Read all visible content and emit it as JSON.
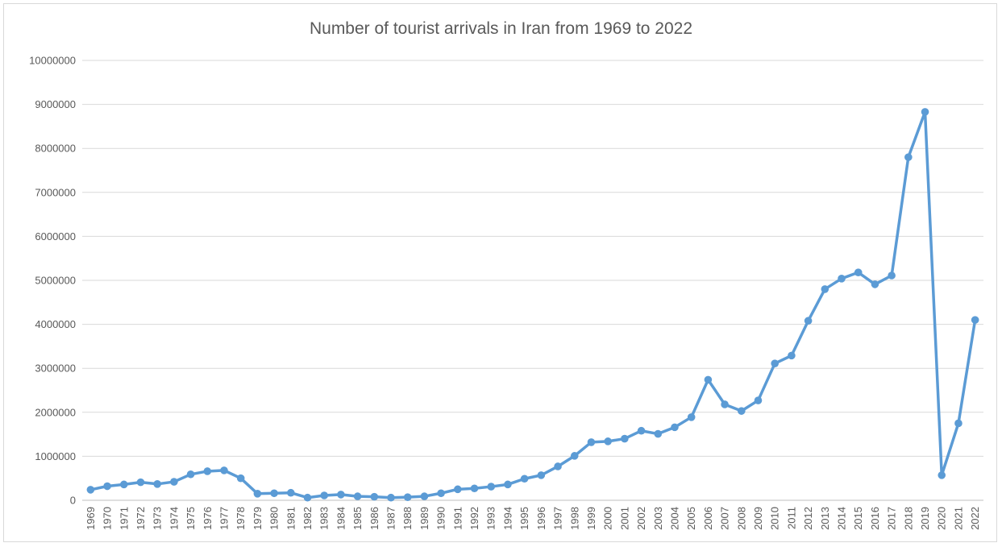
{
  "chart_data": {
    "type": "line",
    "title": "Number of tourist arrivals in Iran from 1969 to 2022",
    "xlabel": "",
    "ylabel": "",
    "ylim": [
      0,
      10000000
    ],
    "yticks": [
      "0",
      "1000000",
      "2000000",
      "3000000",
      "4000000",
      "5000000",
      "6000000",
      "7000000",
      "8000000",
      "9000000",
      "10000000"
    ],
    "grid": true,
    "legend": "none",
    "line_color": "#5B9BD5",
    "categories": [
      "1969",
      "1970",
      "1971",
      "1972",
      "1973",
      "1974",
      "1975",
      "1976",
      "1977",
      "1978",
      "1979",
      "1980",
      "1981",
      "1982",
      "1983",
      "1984",
      "1985",
      "1986",
      "1987",
      "1988",
      "1989",
      "1990",
      "1991",
      "1992",
      "1993",
      "1994",
      "1995",
      "1996",
      "1997",
      "1998",
      "1999",
      "2000",
      "2001",
      "2002",
      "2003",
      "2004",
      "2005",
      "2006",
      "2007",
      "2008",
      "2009",
      "2010",
      "2011",
      "2012",
      "2013",
      "2014",
      "2015",
      "2016",
      "2017",
      "2018",
      "2019",
      "2020",
      "2021",
      "2022"
    ],
    "series": [
      {
        "values": [
          240000,
          320000,
          360000,
          410000,
          370000,
          420000,
          590000,
          660000,
          680000,
          500000,
          150000,
          160000,
          170000,
          60000,
          110000,
          130000,
          90000,
          80000,
          60000,
          70000,
          90000,
          160000,
          250000,
          270000,
          310000,
          360000,
          490000,
          570000,
          770000,
          1010000,
          1320000,
          1340000,
          1400000,
          1580000,
          1510000,
          1660000,
          1890000,
          2740000,
          2180000,
          2030000,
          2270000,
          3110000,
          3290000,
          4080000,
          4800000,
          5040000,
          5180000,
          4910000,
          5110000,
          7800000,
          8830000,
          570000,
          1750000,
          4100000
        ]
      }
    ]
  }
}
